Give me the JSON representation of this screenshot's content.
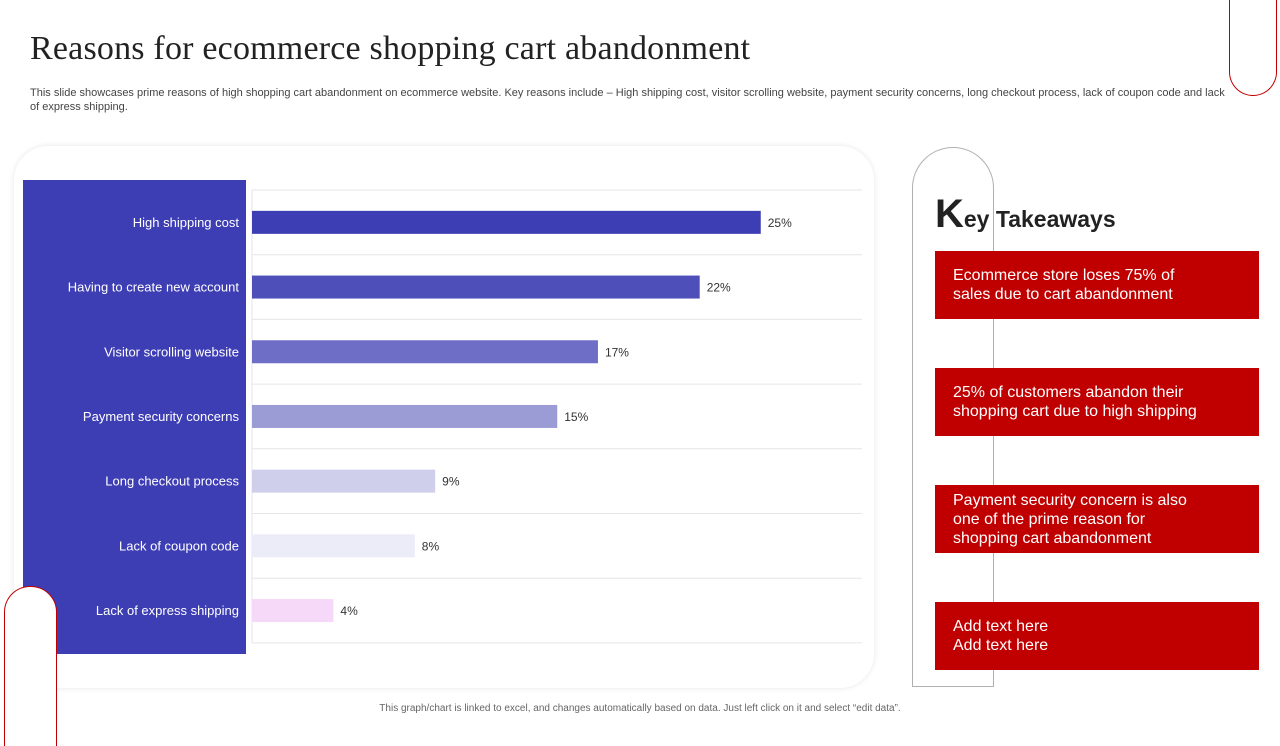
{
  "title": "Reasons for ecommerce shopping cart abandonment",
  "subtitle": "This slide showcases prime reasons of high shopping cart abandonment on ecommerce website. Key reasons include – High shipping cost, visitor scrolling website, payment security concerns, long checkout process, lack of coupon code and lack of express shipping.",
  "chart_data": {
    "type": "bar",
    "orientation": "horizontal",
    "categories": [
      "High shipping cost",
      "Having to create new account",
      "Visitor scrolling website",
      "Payment security concerns",
      "Long checkout process",
      "Lack of coupon code",
      "Lack of express shipping"
    ],
    "values": [
      25,
      22,
      17,
      15,
      9,
      8,
      4
    ],
    "value_labels": [
      "25%",
      "22%",
      "17%",
      "15%",
      "9%",
      "8%",
      "4%"
    ],
    "bar_colors": [
      "#3d3db4",
      "#4f4fba",
      "#6e6ec6",
      "#9b9bd6",
      "#cfcfec",
      "#ececf8",
      "#f6d8f8"
    ],
    "category_panel_color": "#3d3db4",
    "xlim": [
      0,
      32
    ],
    "grid": "horizontal separators",
    "legend": "none"
  },
  "key_takeaways": {
    "title_first_letter": "K",
    "title_rest": "ey Takeaways",
    "items": [
      "Ecommerce store loses 75% of sales due to cart abandonment",
      "25% of customers abandon their shopping cart due to high shipping",
      "Payment security concern is also one of the prime reason for shopping cart abandonment",
      "Add text here Add text here"
    ],
    "box_color": "#c00000"
  },
  "footer_note": "This graph/chart is linked to excel, and changes automatically based on data. Just left click on it and select “edit data”."
}
